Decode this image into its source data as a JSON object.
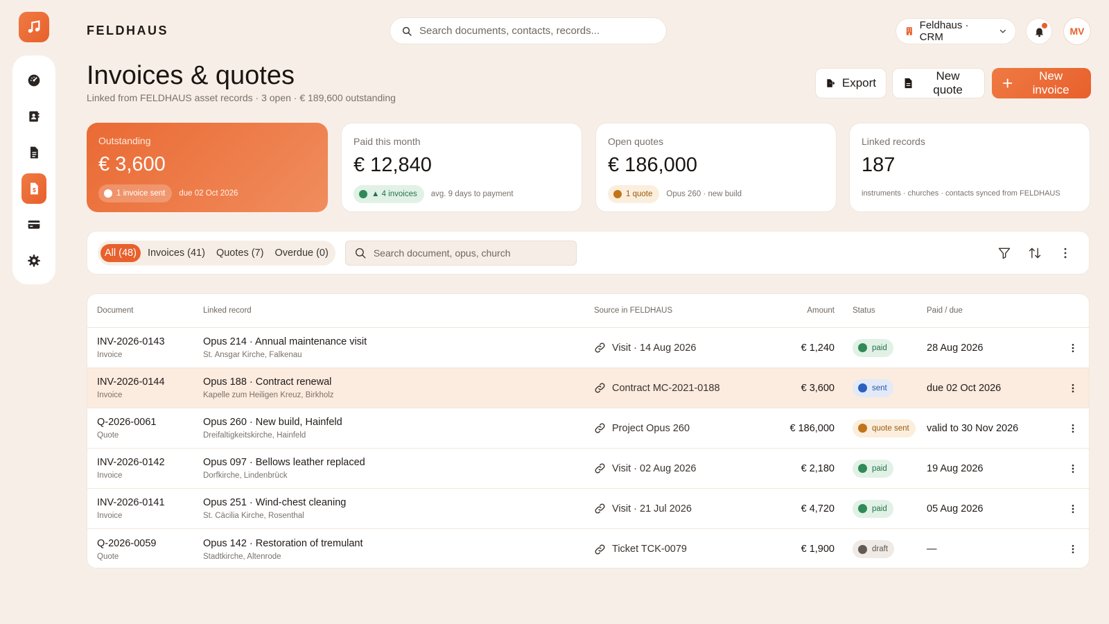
{
  "brand": "FELDHAUS",
  "search": {
    "placeholder": "Search documents, contacts, records..."
  },
  "workspace": {
    "label": "Feldhaus · CRM"
  },
  "user": {
    "initials": "MV"
  },
  "sidebar": {
    "items": [
      {
        "name": "dashboard",
        "icon": "gauge-icon"
      },
      {
        "name": "contacts",
        "icon": "address-book-icon"
      },
      {
        "name": "documents",
        "icon": "document-icon"
      },
      {
        "name": "invoices",
        "icon": "invoice-dollar-icon",
        "active": true
      },
      {
        "name": "payments",
        "icon": "credit-card-icon"
      },
      {
        "name": "settings",
        "icon": "gear-icon"
      }
    ]
  },
  "page": {
    "title": "Invoices & quotes",
    "subtitle": "Linked from FELDHAUS asset records · 3 open · € 189,600 outstanding"
  },
  "actions": {
    "export": "Export",
    "new_quote": "New quote",
    "new_invoice": "New invoice"
  },
  "kpis": [
    {
      "label": "Outstanding",
      "value": "€ 3,600",
      "chip": "1 invoice sent",
      "note": "due 02 Oct 2026"
    },
    {
      "label": "Paid this month",
      "value": "€ 12,840",
      "chip": "▲ 4 invoices",
      "note": "avg. 9 days to payment"
    },
    {
      "label": "Open quotes",
      "value": "€ 186,000",
      "chip": "1 quote",
      "note": "Opus 260 · new build"
    },
    {
      "label": "Linked records",
      "value": "187",
      "note": "instruments · churches · contacts synced from FELDHAUS"
    }
  ],
  "filters": {
    "tabs": [
      "All (48)",
      "Invoices (41)",
      "Quotes (7)",
      "Overdue (0)"
    ],
    "active_tab": "All (48)",
    "search_placeholder": "Search document, opus, church"
  },
  "table": {
    "columns": [
      "Document",
      "Linked record",
      "Source in FELDHAUS",
      "Amount",
      "Status",
      "Paid / due"
    ],
    "rows": [
      {
        "id": "INV-2026-0143",
        "type": "Invoice",
        "record": "Opus 214 · Annual maintenance visit",
        "place": "St. Ansgar Kirche, Falkenau",
        "source": "Visit · 14 Aug 2026",
        "amount": "€ 1,240",
        "status": "paid",
        "due": "28 Aug 2026"
      },
      {
        "id": "INV-2026-0144",
        "type": "Invoice",
        "record": "Opus 188 · Contract renewal",
        "place": "Kapelle zum Heiligen Kreuz, Birkholz",
        "source": "Contract MC-2021-0188",
        "amount": "€ 3,600",
        "status": "sent",
        "due": "due 02 Oct 2026"
      },
      {
        "id": "Q-2026-0061",
        "type": "Quote",
        "record": "Opus 260 · New build, Hainfeld",
        "place": "Dreifaltigkeitskirche, Hainfeld",
        "source": "Project Opus 260",
        "amount": "€ 186,000",
        "status": "quote sent",
        "due": "valid to 30 Nov 2026"
      },
      {
        "id": "INV-2026-0142",
        "type": "Invoice",
        "record": "Opus 097 · Bellows leather replaced",
        "place": "Dorfkirche, Lindenbrück",
        "source": "Visit · 02 Aug 2026",
        "amount": "€ 2,180",
        "status": "paid",
        "due": "19 Aug 2026"
      },
      {
        "id": "INV-2026-0141",
        "type": "Invoice",
        "record": "Opus 251 · Wind-chest cleaning",
        "place": "St. Cäcilia Kirche, Rosenthal",
        "source": "Visit · 21 Jul 2026",
        "amount": "€ 4,720",
        "status": "paid",
        "due": "05 Aug 2026"
      },
      {
        "id": "Q-2026-0059",
        "type": "Quote",
        "record": "Opus 142 · Restoration of tremulant",
        "place": "Stadtkirche, Altenrode",
        "source": "Ticket TCK-0079",
        "amount": "€ 1,900",
        "status": "draft",
        "due": "—"
      }
    ]
  },
  "colors": {
    "accent": "#e8602c",
    "background": "#f7efe7",
    "paid": "#2f8a58",
    "sent": "#2d5fbf",
    "quote": "#c27418",
    "draft": "#625a54"
  }
}
